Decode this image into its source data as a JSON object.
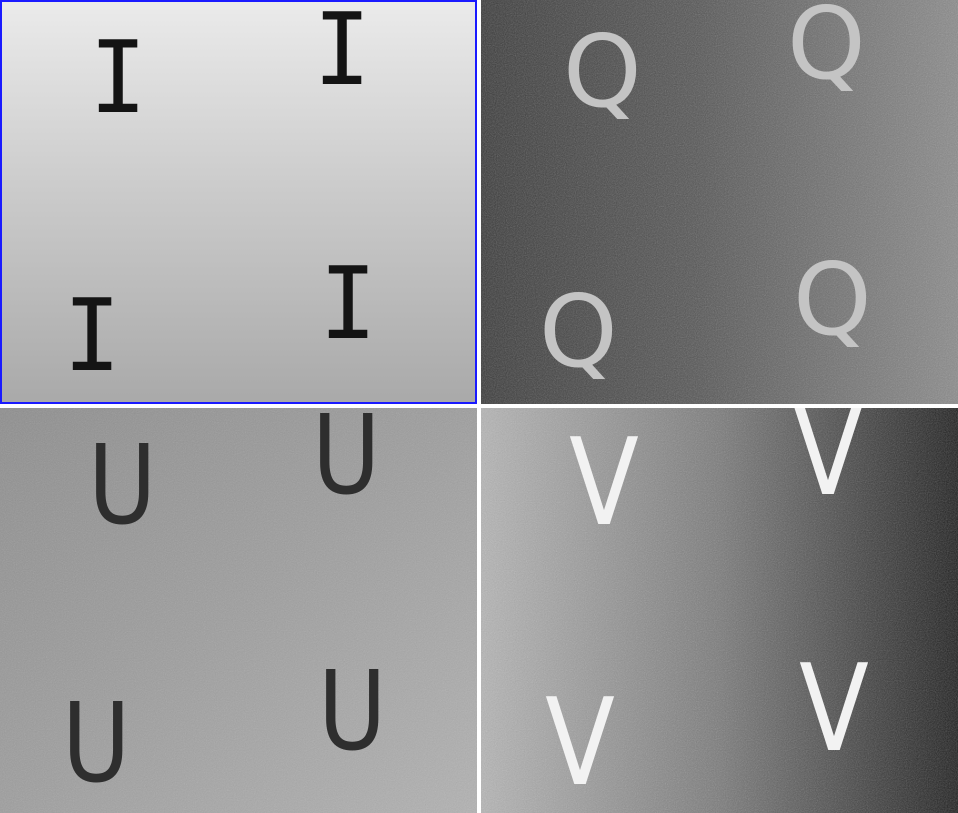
{
  "tiles": [
    {
      "id": "tile-0",
      "letters": [
        "I",
        "I",
        "I",
        "I"
      ]
    },
    {
      "id": "tile-1",
      "letters": [
        "Q",
        "Q",
        "Q",
        "Q"
      ]
    },
    {
      "id": "tile-2",
      "letters": [
        "U",
        "U",
        "U",
        "U"
      ]
    },
    {
      "id": "tile-3",
      "letters": [
        "V",
        "V",
        "V",
        "V"
      ]
    }
  ]
}
